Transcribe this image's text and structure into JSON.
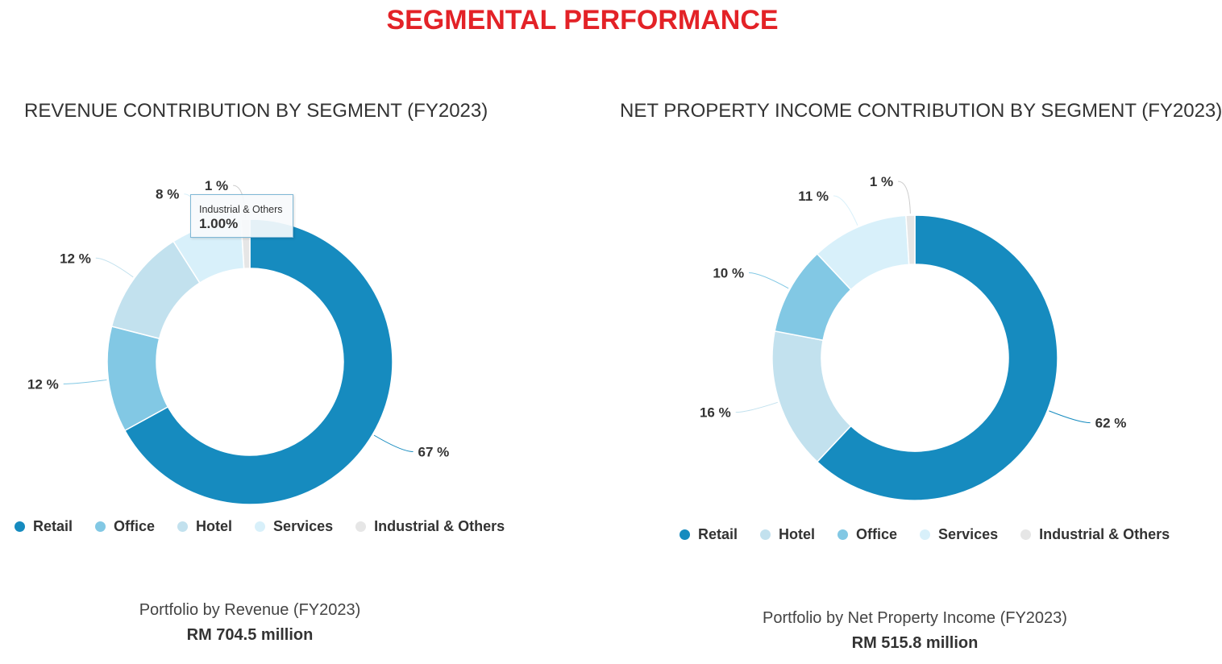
{
  "page_title": "SEGMENTAL PERFORMANCE",
  "colors": {
    "title": "#e32227",
    "Retail": "#168bbf",
    "Office": "#82c8e4",
    "Hotel": "#c2e1ee",
    "Services": "#d8f0fa",
    "Industrial & Others": "#e6e6e6"
  },
  "chart_data": [
    {
      "type": "pie",
      "donut": true,
      "title": "REVENUE CONTRIBUTION BY SEGMENT (FY2023)",
      "slices": [
        {
          "name": "Retail",
          "value": 67,
          "label": "67 %"
        },
        {
          "name": "Office",
          "value": 12,
          "label": "12 %"
        },
        {
          "name": "Hotel",
          "value": 12,
          "label": "12 %"
        },
        {
          "name": "Services",
          "value": 8,
          "label": "8 %"
        },
        {
          "name": "Industrial & Others",
          "value": 1,
          "label": "1 %"
        }
      ],
      "legend": [
        "Retail",
        "Office",
        "Hotel",
        "Services",
        "Industrial & Others"
      ],
      "legend_position": "bottom",
      "tooltip": {
        "name": "Industrial & Others",
        "value": "1.00%"
      },
      "caption": "Portfolio by Revenue (FY2023)",
      "caption_value": "RM 704.5 million"
    },
    {
      "type": "pie",
      "donut": true,
      "title": "NET PROPERTY INCOME CONTRIBUTION BY SEGMENT (FY2023)",
      "slices": [
        {
          "name": "Retail",
          "value": 62,
          "label": "62 %"
        },
        {
          "name": "Hotel",
          "value": 16,
          "label": "16 %"
        },
        {
          "name": "Office",
          "value": 10,
          "label": "10 %"
        },
        {
          "name": "Services",
          "value": 11,
          "label": "11 %"
        },
        {
          "name": "Industrial & Others",
          "value": 1,
          "label": "1 %"
        }
      ],
      "legend": [
        "Retail",
        "Hotel",
        "Office",
        "Services",
        "Industrial & Others"
      ],
      "legend_position": "bottom",
      "caption": "Portfolio by Net Property Income (FY2023)",
      "caption_value": "RM 515.8 million"
    }
  ]
}
